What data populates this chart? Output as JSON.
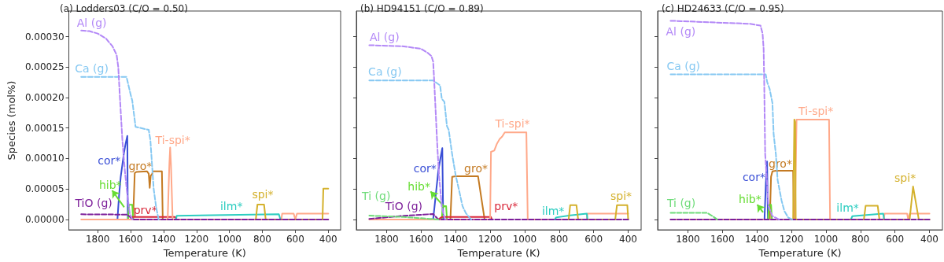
{
  "chart_data": [
    {
      "type": "line",
      "title": "(a) Lodders03 (C/O = 0.50)",
      "xlabel": "Temperature (K)",
      "ylabel": "Species (mol%)",
      "xlim": [
        1975,
        325
      ],
      "ylim": [
        -1.7e-05,
        0.000342
      ],
      "xticks": [
        1800,
        1600,
        1400,
        1200,
        1000,
        800,
        600,
        400
      ],
      "yticks": [
        {
          "value": 0,
          "label": "0.00000"
        },
        {
          "value": 5e-05,
          "label": "0.00005"
        },
        {
          "value": 0.0001,
          "label": "0.00010"
        },
        {
          "value": 0.00015,
          "label": "0.00015"
        },
        {
          "value": 0.0002,
          "label": "0.00020"
        },
        {
          "value": 0.00025,
          "label": "0.00025"
        },
        {
          "value": 0.0003,
          "label": "0.00030"
        }
      ],
      "grid": false,
      "legend": false,
      "marker": "none",
      "series": [
        {
          "name": "Al (g)",
          "color": "#b388f7",
          "line_style": "dashed",
          "x": [
            1900,
            1850,
            1800,
            1750,
            1710,
            1685,
            1675,
            1665,
            1650,
            1635,
            1620,
            1605,
            1590
          ],
          "values": [
            0.00031,
            0.000309,
            0.000305,
            0.000297,
            0.000284,
            0.00027,
            0.00025,
            0.0002,
            0.00013,
            8e-05,
            4e-05,
            1e-05,
            0
          ]
        },
        {
          "name": "Ca (g)",
          "color": "#85c8f2",
          "line_style": "dashed",
          "x": [
            1900,
            1625,
            1600,
            1590,
            1570,
            1490,
            1480,
            1470,
            1460,
            1445,
            1430
          ],
          "values": [
            0.000234,
            0.000234,
            0.000205,
            0.000195,
            0.000152,
            0.000147,
            0.00013,
            9e-05,
            5e-05,
            2e-05,
            0
          ]
        },
        {
          "name": "cor*",
          "color": "#3a4fd6",
          "line_style": "solid",
          "x": [
            1680,
            1670,
            1660,
            1650,
            1640,
            1630,
            1620,
            1617
          ],
          "values": [
            0,
            4e-05,
            7e-05,
            9e-05,
            0.00011,
            0.000125,
            0.000137,
            0
          ]
        },
        {
          "name": "gro*",
          "color": "#c47a22",
          "line_style": "solid",
          "x": [
            1585,
            1575,
            1565,
            1500,
            1490,
            1484,
            1478,
            1470,
            1465,
            1410,
            1405
          ],
          "values": [
            0,
            7.6e-05,
            7.8e-05,
            7.9e-05,
            7.5e-05,
            5.2e-05,
            7.2e-05,
            7.4e-05,
            7.9e-05,
            7.9e-05,
            0
          ]
        },
        {
          "name": "hib*",
          "color": "#66dd33",
          "line_style": "solid",
          "x": [
            1615,
            1610,
            1590,
            1585
          ],
          "values": [
            0,
            2.4e-05,
            2.4e-05,
            0
          ]
        },
        {
          "name": "prv*",
          "color": "#d9283a",
          "line_style": "solid",
          "x": [
            1600,
            1590,
            1330,
            1320
          ],
          "values": [
            0,
            4e-06,
            4e-06,
            0
          ]
        },
        {
          "name": "Ti-spi*",
          "color": "#ffa98a",
          "line_style": "solid",
          "x": [
            1900,
            1375,
            1365,
            1360,
            1355,
            1345,
            685,
            680,
            610,
            600,
            590,
            400
          ],
          "values": [
            0,
            0,
            9e-05,
            0.000118,
            9e-05,
            0,
            0,
            9.5e-06,
            9.5e-06,
            0,
            9.5e-06,
            9.5e-06
          ]
        },
        {
          "name": "ilm*",
          "color": "#2ccdc0",
          "line_style": "solid",
          "x": [
            1325,
            1320,
            700,
            690
          ],
          "values": [
            0,
            6e-06,
            8.5e-06,
            0
          ]
        },
        {
          "name": "spi*",
          "color": "#d4b12c",
          "line_style": "solid",
          "x": [
            840,
            830,
            790,
            780,
            435,
            430,
            400
          ],
          "values": [
            0,
            2.45e-05,
            2.45e-05,
            0,
            0,
            5.05e-05,
            5.05e-05
          ]
        },
        {
          "name": "TiO (g)",
          "color": "#7d1f9a",
          "line_style": "dashed",
          "x": [
            1900,
            1620,
            1600,
            1580,
            400
          ],
          "values": [
            8.5e-06,
            8e-06,
            3e-06,
            0,
            0
          ]
        }
      ]
    },
    {
      "type": "line",
      "title": "(b) HD94151 (C/O = 0.89)",
      "xlabel": "Temperature (K)",
      "xlim": [
        1975,
        325
      ],
      "ylim": [
        -1.7e-05,
        0.000342
      ],
      "xticks": [
        1800,
        1600,
        1400,
        1200,
        1000,
        800,
        600,
        400
      ],
      "yticks": [
        {
          "value": 0,
          "label": null
        },
        {
          "value": 5e-05,
          "label": null
        },
        {
          "value": 0.0001,
          "label": null
        },
        {
          "value": 0.00015,
          "label": null
        },
        {
          "value": 0.0002,
          "label": null
        },
        {
          "value": 0.00025,
          "label": null
        },
        {
          "value": 0.0003,
          "label": null
        }
      ],
      "tick_labels": "x",
      "grid": false,
      "legend": false,
      "marker": "none",
      "series": [
        {
          "name": "Al (g)",
          "color": "#b388f7",
          "line_style": "dashed",
          "x": [
            1900,
            1700,
            1600,
            1560,
            1540,
            1530,
            1525,
            1515,
            1505,
            1495,
            1480,
            1470,
            1460
          ],
          "values": [
            0.000286,
            0.000284,
            0.00028,
            0.000273,
            0.000268,
            0.000259,
            0.000233,
            0.000174,
            0.000115,
            6.9e-05,
            2.2e-05,
            8e-06,
            0
          ]
        },
        {
          "name": "Ca (g)",
          "color": "#85c8f2",
          "line_style": "dashed",
          "x": [
            1900,
            1530,
            1490,
            1480,
            1465,
            1450,
            1440,
            1420,
            1400,
            1380,
            1360,
            1340,
            1310
          ],
          "values": [
            0.000228,
            0.000228,
            0.00022,
            0.000198,
            0.000193,
            0.000153,
            0.000147,
            0.000107,
            7.3e-05,
            4.8e-05,
            2.2e-05,
            1e-05,
            0
          ]
        },
        {
          "name": "cor*",
          "color": "#3a4fd6",
          "line_style": "solid",
          "x": [
            1530,
            1515,
            1500,
            1485,
            1477,
            1472
          ],
          "values": [
            0,
            4e-05,
            8e-05,
            0.000105,
            0.000117,
            0
          ]
        },
        {
          "name": "gro*",
          "color": "#c47a22",
          "line_style": "solid",
          "x": [
            1430,
            1420,
            1400,
            1270,
            1232
          ],
          "values": [
            0,
            7e-05,
            7.1e-05,
            7.1e-05,
            0
          ]
        },
        {
          "name": "hib*",
          "color": "#66dd33",
          "line_style": "solid",
          "x": [
            1480,
            1475,
            1455,
            1450
          ],
          "values": [
            0,
            2.2e-05,
            2.2e-05,
            0
          ]
        },
        {
          "name": "prv*",
          "color": "#d9283a",
          "line_style": "solid",
          "x": [
            1500,
            1480,
            1195,
            1190
          ],
          "values": [
            0,
            4e-06,
            4e-06,
            0
          ]
        },
        {
          "name": "Ti-spi*",
          "color": "#ffa98a",
          "line_style": "solid",
          "x": [
            1900,
            1200,
            1195,
            1176,
            1161,
            1145,
            1130,
            1115,
            990,
            982,
            640,
            636,
            400
          ],
          "values": [
            0,
            0,
            0.000111,
            0.000113,
            0.000124,
            0.000132,
            0.000136,
            0.000143,
            0.000143,
            0,
            0,
            9.7e-06,
            9.7e-06
          ]
        },
        {
          "name": "ilm*",
          "color": "#2ccdc0",
          "line_style": "solid",
          "x": [
            825,
            818,
            736,
            640,
            636
          ],
          "values": [
            0,
            3.3e-06,
            6.7e-06,
            9.6e-06,
            0
          ]
        },
        {
          "name": "spi*",
          "color": "#d4b12c",
          "line_style": "solid",
          "x": [
            745,
            736,
            700,
            690,
            475,
            465,
            405,
            400
          ],
          "values": [
            0,
            2.35e-05,
            2.35e-05,
            0,
            0,
            2.35e-05,
            2.35e-05,
            0
          ]
        },
        {
          "name": "Ti (g)",
          "color": "#6fdc7a",
          "line_style": "dashed",
          "x": [
            1900,
            1700,
            1550,
            1500
          ],
          "values": [
            6.3e-06,
            4e-06,
            1e-06,
            0
          ]
        },
        {
          "name": "TiO (g)",
          "color": "#7d1f9a",
          "line_style": "dashed",
          "x": [
            1900,
            1700,
            1530,
            1500,
            400
          ],
          "values": [
            1e-06,
            6e-06,
            9e-06,
            0,
            0
          ]
        }
      ]
    },
    {
      "type": "line",
      "title": "(c) HD24633 (C/O = 0.95)",
      "xlabel": "Temperature (K)",
      "xlim": [
        1975,
        325
      ],
      "ylim": [
        -1.7e-05,
        0.000342
      ],
      "xticks": [
        1800,
        1600,
        1400,
        1200,
        1000,
        800,
        600,
        400
      ],
      "yticks": [
        {
          "value": 0,
          "label": null
        },
        {
          "value": 5e-05,
          "label": null
        },
        {
          "value": 0.0001,
          "label": null
        },
        {
          "value": 0.00015,
          "label": null
        },
        {
          "value": 0.0002,
          "label": null
        },
        {
          "value": 0.00025,
          "label": null
        },
        {
          "value": 0.0003,
          "label": null
        }
      ],
      "tick_labels": "x",
      "grid": false,
      "legend": false,
      "marker": "none",
      "series": [
        {
          "name": "Al (g)",
          "color": "#b388f7",
          "line_style": "dashed",
          "x": [
            1900,
            1440,
            1379,
            1367,
            1361,
            1358,
            1352,
            1333,
            1310,
            1272
          ],
          "values": [
            0.000326,
            0.000321,
            0.000318,
            0.000305,
            0.00028,
            0.000233,
            0.000107,
            2.2e-05,
            5.5e-06,
            0
          ]
        },
        {
          "name": "Ca (g)",
          "color": "#85c8f2",
          "line_style": "dashed",
          "x": [
            1900,
            1349,
            1340,
            1326,
            1310,
            1303,
            1290,
            1280,
            1257,
            1241,
            1219,
            1196
          ],
          "values": [
            0.000238,
            0.000238,
            0.000225,
            0.000214,
            0.000191,
            0.00014,
            0.000107,
            6.5e-05,
            3.1e-05,
            1.4e-05,
            3.4e-06,
            0
          ]
        },
        {
          "name": "cor*",
          "color": "#3a4fd6",
          "line_style": "solid",
          "x": [
            1356,
            1348,
            1341,
            1336
          ],
          "values": [
            0,
            6e-05,
            9.5e-05,
            0
          ]
        },
        {
          "name": "gro*",
          "color": "#c47a22",
          "line_style": "solid",
          "x": [
            1325,
            1318,
            1310,
            1290,
            1190,
            1186
          ],
          "values": [
            0,
            7e-05,
            7.9e-05,
            8e-05,
            8e-05,
            0
          ]
        },
        {
          "name": "hib*",
          "color": "#66dd33",
          "line_style": "solid",
          "x": [
            1335,
            1330,
            1318,
            1313
          ],
          "values": [
            0,
            2.4e-05,
            2.4e-05,
            0
          ]
        },
        {
          "name": "Ti-spi*",
          "color": "#ffa98a",
          "line_style": "solid",
          "x": [
            1900,
            1180,
            1170,
            982,
            976,
            665,
            660,
            530,
            523,
            515,
            400
          ],
          "values": [
            0,
            0,
            0.000164,
            0.000164,
            0,
            0,
            9.7e-06,
            9.7e-06,
            0,
            9.7e-06,
            9.7e-06
          ]
        },
        {
          "name": "ilm*",
          "color": "#2ccdc0",
          "line_style": "solid",
          "x": [
            855,
            847,
            668,
            663
          ],
          "values": [
            0,
            5.4e-06,
            9.6e-06,
            0
          ]
        },
        {
          "name": "spi*",
          "color": "#d4b12c",
          "line_style": "solid",
          "x": [
            1190,
            1183,
            1178,
            1175,
            780,
            770,
            700,
            690,
            515,
            495,
            462,
            400
          ],
          "values": [
            0,
            0.000164,
            0.00016,
            0,
            0,
            2.24e-05,
            2.24e-05,
            0,
            0,
            5.4e-05,
            0,
            0
          ]
        },
        {
          "name": "Ti (g)",
          "color": "#6fdc7a",
          "line_style": "dashed",
          "x": [
            1900,
            1690,
            1660,
            1630
          ],
          "values": [
            1.1e-05,
            1.1e-05,
            6e-06,
            0
          ]
        },
        {
          "color": "#7d1f9a",
          "line_style": "dashed",
          "x": [
            1900,
            400
          ],
          "values": [
            0,
            0
          ]
        }
      ]
    }
  ]
}
